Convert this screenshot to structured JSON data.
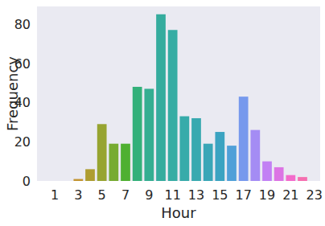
{
  "chart_data": {
    "type": "bar",
    "x_label": "Hour",
    "y_label": "Frequency",
    "categories": [
      null,
      "1",
      null,
      "3",
      null,
      "5",
      null,
      "7",
      null,
      "9",
      null,
      "11",
      null,
      "13",
      null,
      "15",
      null,
      "17",
      null,
      "19",
      null,
      "21",
      null,
      "23"
    ],
    "values": [
      0,
      0,
      0,
      1,
      6,
      29,
      19,
      19,
      48,
      47,
      85,
      77,
      33,
      32,
      19,
      25,
      18,
      43,
      26,
      10,
      7,
      3,
      2,
      0
    ],
    "colors": [
      "#f77189",
      "#f7754f",
      "#dc8932",
      "#c39532",
      "#ae9d31",
      "#97a431",
      "#77ab31",
      "#4fb031",
      "#33b07a",
      "#34ae91",
      "#35ac9e",
      "#36ada4",
      "#37abaa",
      "#38a9b0",
      "#3aa6b7",
      "#3ba3c1",
      "#50a0d8",
      "#7799ed",
      "#a48cf4",
      "#c280f4",
      "#dc74e4",
      "#f36bcb",
      "#f56fb0",
      "#f6709a"
    ],
    "ylim": [
      0,
      89
    ],
    "yticks": [
      0,
      20,
      40,
      60,
      80
    ],
    "grid": false
  }
}
